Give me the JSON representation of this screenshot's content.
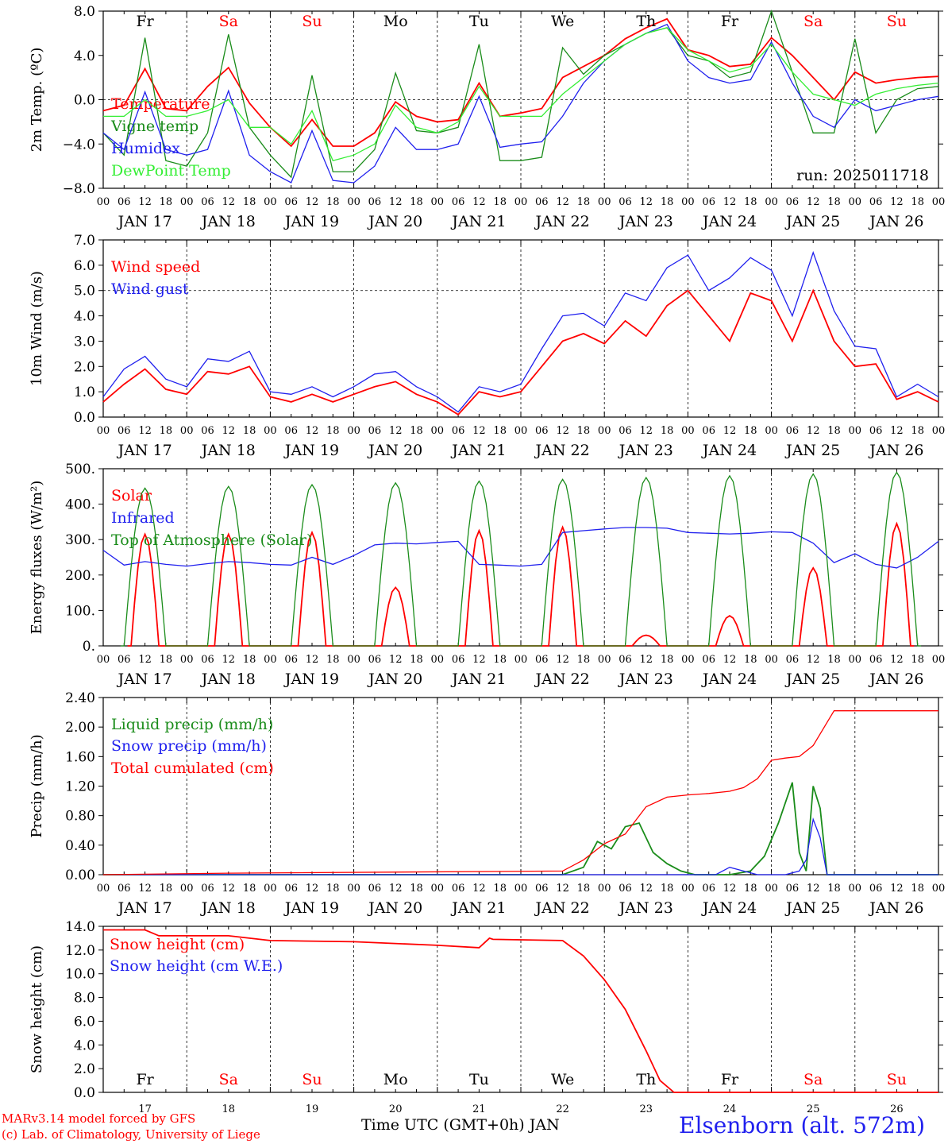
{
  "colors": {
    "red": "#ff0000",
    "green": "#1a8c1a",
    "blue": "#2020ee",
    "lightgreen": "#33ee33",
    "weekend": "#ff0000",
    "weekday": "#000000"
  },
  "time_axis": {
    "hour_ticks": [
      "00",
      "06",
      "12",
      "18"
    ],
    "days": [
      "JAN 17",
      "JAN 18",
      "JAN 19",
      "JAN 20",
      "JAN 21",
      "JAN 22",
      "JAN 23",
      "JAN 24",
      "JAN 25",
      "JAN 26"
    ],
    "day_numbers": [
      "17",
      "18",
      "19",
      "20",
      "21",
      "22",
      "23",
      "24",
      "25",
      "26"
    ],
    "weekdays": [
      {
        "label": "Fr",
        "weekend": false
      },
      {
        "label": "Sa",
        "weekend": true
      },
      {
        "label": "Su",
        "weekend": true
      },
      {
        "label": "Mo",
        "weekend": false
      },
      {
        "label": "Tu",
        "weekend": false
      },
      {
        "label": "We",
        "weekend": false
      },
      {
        "label": "Th",
        "weekend": false
      },
      {
        "label": "Fr",
        "weekend": false
      },
      {
        "label": "Sa",
        "weekend": true
      },
      {
        "label": "Su",
        "weekend": true
      }
    ]
  },
  "footer": {
    "xlabel": "Time UTC (GMT+0h) JAN",
    "credit_line1": "MARv3.14 model forced by GFS",
    "credit_line2": "(c) Lab. of Climatology, University of Liege",
    "station": "Elsenborn (alt. 572m)"
  },
  "chart_data": [
    {
      "type": "line",
      "ylabel": "2m Temp. (ºC)",
      "ylim": [
        -8,
        8
      ],
      "yticks": [
        "8.0",
        "4.0",
        "0.0",
        "−4.0",
        "−8.0"
      ],
      "reference_line": 0,
      "annotation": "run: 2025011718",
      "x_unit": "hours since JAN 17 00 UTC",
      "series": [
        {
          "name": "Temperature",
          "color": "red",
          "x": [
            0,
            6,
            12,
            18,
            24,
            30,
            36,
            42,
            48,
            54,
            60,
            66,
            72,
            78,
            84,
            90,
            96,
            102,
            108,
            114,
            120,
            126,
            132,
            138,
            144,
            150,
            156,
            162,
            168,
            174,
            180,
            186,
            192,
            198,
            204,
            210,
            216,
            222,
            228,
            234,
            240
          ],
          "y": [
            -1,
            -0.5,
            2.8,
            -0.8,
            -1,
            1.2,
            2.9,
            -0.3,
            -2.5,
            -4.2,
            -1.8,
            -4.2,
            -4.2,
            -3,
            -0.2,
            -1.5,
            -2,
            -1.8,
            1.5,
            -1.5,
            -1.2,
            -0.8,
            2,
            3,
            4,
            5.5,
            6.5,
            7.3,
            4.5,
            4,
            3,
            3.2,
            5.6,
            4,
            2,
            0,
            2.5,
            1.5,
            1.8,
            2,
            2.1
          ]
        },
        {
          "name": "Vigne temp",
          "color": "green",
          "x": [
            0,
            6,
            12,
            18,
            24,
            30,
            36,
            42,
            48,
            54,
            60,
            66,
            72,
            78,
            84,
            90,
            96,
            102,
            108,
            114,
            120,
            126,
            132,
            138,
            144,
            150,
            156,
            162,
            168,
            174,
            180,
            186,
            192,
            198,
            204,
            210,
            216,
            222,
            228,
            234,
            240
          ],
          "y": [
            -3,
            -5,
            5.6,
            -5.5,
            -6,
            -3,
            5.9,
            -2.5,
            -5,
            -7,
            2.2,
            -6.5,
            -6.5,
            -4.5,
            2.4,
            -2.8,
            -3,
            -2.5,
            5,
            -5.5,
            -5.5,
            -5.2,
            4.7,
            2.3,
            4,
            5,
            6,
            6.5,
            4,
            3.5,
            2,
            2.5,
            8,
            2.5,
            -3,
            -3,
            5.5,
            -3,
            0,
            1,
            1.2
          ]
        },
        {
          "name": "Humidex",
          "color": "blue",
          "x": [
            0,
            6,
            12,
            18,
            24,
            30,
            36,
            42,
            48,
            54,
            60,
            66,
            72,
            78,
            84,
            90,
            96,
            102,
            108,
            114,
            120,
            126,
            132,
            138,
            144,
            150,
            156,
            162,
            168,
            174,
            180,
            186,
            192,
            198,
            204,
            210,
            216,
            222,
            228,
            234,
            240
          ],
          "y": [
            -3,
            -4.5,
            0.7,
            -4.5,
            -5,
            -4.5,
            0.8,
            -5,
            -6.5,
            -7.5,
            -2.8,
            -7.3,
            -7.5,
            -6,
            -2.5,
            -4.5,
            -4.5,
            -4,
            0.3,
            -4.3,
            -4,
            -3.8,
            -1.5,
            1.5,
            3.5,
            5,
            6,
            6.8,
            3.5,
            2,
            1.5,
            1.8,
            5.2,
            1.5,
            -1.5,
            -2.5,
            0,
            -1,
            -0.5,
            0,
            0.3
          ]
        },
        {
          "name": "DewPoint Temp",
          "color": "lightgreen",
          "x": [
            0,
            6,
            12,
            18,
            24,
            30,
            36,
            42,
            48,
            54,
            60,
            66,
            72,
            78,
            84,
            90,
            96,
            102,
            108,
            114,
            120,
            126,
            132,
            138,
            144,
            150,
            156,
            162,
            168,
            174,
            180,
            186,
            192,
            198,
            204,
            210,
            216,
            222,
            228,
            234,
            240
          ],
          "y": [
            -1.5,
            -1.5,
            0,
            -1.5,
            -1.5,
            -1,
            0,
            -2.5,
            -2.5,
            -4,
            -1,
            -5.5,
            -5,
            -4,
            -0.5,
            -2.5,
            -3,
            -2,
            1.2,
            -1.5,
            -1.5,
            -1.5,
            0.5,
            2,
            3.5,
            5,
            6,
            6.5,
            4.5,
            3.5,
            2.5,
            3,
            5,
            2.5,
            0.5,
            0,
            -0.5,
            0.5,
            1,
            1.3,
            1.5
          ]
        }
      ]
    },
    {
      "type": "line",
      "ylabel": "10m Wind (m/s)",
      "ylim": [
        0,
        7
      ],
      "yticks": [
        "7.0",
        "6.0",
        "5.0",
        "4.0",
        "3.0",
        "2.0",
        "1.0",
        "0.0"
      ],
      "reference_line": 5,
      "x_unit": "hours since JAN 17 00 UTC",
      "series": [
        {
          "name": "Wind speed",
          "color": "red",
          "x": [
            0,
            6,
            12,
            18,
            24,
            30,
            36,
            42,
            48,
            54,
            60,
            66,
            72,
            78,
            84,
            90,
            96,
            102,
            108,
            114,
            120,
            126,
            132,
            138,
            144,
            150,
            156,
            162,
            168,
            174,
            180,
            186,
            192,
            198,
            204,
            210,
            216,
            222,
            228,
            234,
            240
          ],
          "y": [
            0.6,
            1.3,
            1.9,
            1.1,
            0.9,
            1.8,
            1.7,
            2,
            0.8,
            0.6,
            0.9,
            0.6,
            0.9,
            1.2,
            1.4,
            0.9,
            0.6,
            0.1,
            1,
            0.8,
            1,
            2,
            3,
            3.3,
            2.9,
            3.8,
            3.2,
            4.4,
            5,
            4,
            3,
            4.9,
            4.6,
            3,
            5,
            3,
            2,
            2.1,
            0.7,
            1,
            0.6
          ]
        },
        {
          "name": "Wind gust",
          "color": "blue",
          "x": [
            0,
            6,
            12,
            18,
            24,
            30,
            36,
            42,
            48,
            54,
            60,
            66,
            72,
            78,
            84,
            90,
            96,
            102,
            108,
            114,
            120,
            126,
            132,
            138,
            144,
            150,
            156,
            162,
            168,
            174,
            180,
            186,
            192,
            198,
            204,
            210,
            216,
            222,
            228,
            234,
            240
          ],
          "y": [
            0.8,
            1.9,
            2.4,
            1.5,
            1.2,
            2.3,
            2.2,
            2.6,
            1,
            0.9,
            1.2,
            0.8,
            1.2,
            1.7,
            1.8,
            1.2,
            0.8,
            0.2,
            1.2,
            1,
            1.3,
            2.7,
            4,
            4.1,
            3.6,
            4.9,
            4.6,
            5.9,
            6.4,
            5,
            5.5,
            6.3,
            5.8,
            4,
            6.5,
            4.2,
            2.8,
            2.7,
            0.8,
            1.3,
            0.8
          ]
        }
      ]
    },
    {
      "type": "line",
      "ylabel": "Energy fluxes (W/m²)",
      "ylim": [
        0,
        500
      ],
      "yticks": [
        "500.",
        "400.",
        "300.",
        "200.",
        "100.",
        "0."
      ],
      "x_unit": "hours since JAN 17 00 UTC",
      "series": [
        {
          "name": "Solar",
          "color": "red",
          "daily_peak_hour": 12,
          "daily_peaks": [
            315,
            315,
            320,
            165,
            325,
            335,
            30,
            85,
            220,
            345
          ]
        },
        {
          "name": "Infrared",
          "color": "blue",
          "x": [
            0,
            6,
            12,
            18,
            24,
            30,
            36,
            42,
            48,
            54,
            60,
            66,
            72,
            78,
            84,
            90,
            96,
            102,
            108,
            114,
            120,
            126,
            132,
            138,
            144,
            150,
            156,
            162,
            168,
            174,
            180,
            186,
            192,
            198,
            204,
            210,
            216,
            222,
            228,
            234,
            240
          ],
          "y": [
            270,
            228,
            238,
            230,
            225,
            232,
            238,
            235,
            230,
            228,
            250,
            230,
            255,
            285,
            290,
            288,
            292,
            295,
            230,
            228,
            225,
            230,
            320,
            325,
            330,
            334,
            334,
            332,
            320,
            318,
            316,
            318,
            322,
            320,
            290,
            235,
            260,
            230,
            220,
            250,
            295
          ]
        },
        {
          "name": "Top of Atmosphere (Solar)",
          "color": "green",
          "daily_peak_hour": 12,
          "daily_peaks": [
            445,
            450,
            455,
            460,
            465,
            470,
            475,
            480,
            485,
            490
          ]
        }
      ]
    },
    {
      "type": "line",
      "ylabel": "Precip (mm/h)",
      "ylim": [
        0,
        2.4
      ],
      "yticks": [
        "2.40",
        "2.00",
        "1.60",
        "1.20",
        "0.80",
        "0.40",
        "0.00"
      ],
      "x_unit": "hours since JAN 17 00 UTC",
      "series": [
        {
          "name": "Liquid precip (mm/h)",
          "color": "green",
          "x": [
            0,
            132,
            138,
            142,
            146,
            150,
            154,
            158,
            162,
            166,
            170,
            180,
            186,
            190,
            194,
            198,
            200,
            202,
            204,
            206,
            208,
            240
          ],
          "y": [
            0,
            0,
            0.1,
            0.45,
            0.35,
            0.65,
            0.7,
            0.3,
            0.15,
            0.05,
            0,
            0,
            0.05,
            0.25,
            0.7,
            1.25,
            0.3,
            0.05,
            1.2,
            0.9,
            0,
            0
          ]
        },
        {
          "name": "Snow precip (mm/h)",
          "color": "blue",
          "x": [
            0,
            176,
            180,
            184,
            188,
            196,
            200,
            202,
            204,
            206,
            208,
            240
          ],
          "y": [
            0,
            0,
            0.1,
            0.05,
            0,
            0,
            0.05,
            0.2,
            0.75,
            0.5,
            0,
            0
          ]
        },
        {
          "name": "Total cumulated (cm)",
          "color": "red",
          "x": [
            0,
            36,
            132,
            138,
            144,
            150,
            156,
            162,
            168,
            174,
            180,
            184,
            188,
            192,
            196,
            200,
            204,
            210,
            220,
            240
          ],
          "y": [
            0,
            0.02,
            0.05,
            0.2,
            0.42,
            0.55,
            0.92,
            1.05,
            1.08,
            1.1,
            1.13,
            1.18,
            1.3,
            1.55,
            1.58,
            1.6,
            1.75,
            2.22,
            2.22,
            2.22
          ]
        }
      ]
    },
    {
      "type": "line",
      "ylabel": "Snow height (cm)",
      "ylim": [
        0,
        14
      ],
      "yticks": [
        "14.0",
        "12.0",
        "10.0",
        "8.0",
        "6.0",
        "4.0",
        "2.0",
        "0.0"
      ],
      "x_unit": "hours since JAN 17 00 UTC",
      "series": [
        {
          "name": "Snow height (cm)",
          "color": "red",
          "x": [
            0,
            12,
            16,
            36,
            48,
            72,
            96,
            108,
            111,
            112,
            132,
            138,
            144,
            150,
            156,
            160,
            164,
            240
          ],
          "y": [
            13.7,
            13.7,
            13.2,
            13.2,
            12.8,
            12.7,
            12.4,
            12.2,
            13,
            12.9,
            12.8,
            11.5,
            9.5,
            7,
            3.5,
            1,
            0,
            0
          ]
        },
        {
          "name": "Snow height (cm W.E.)",
          "color": "blue",
          "x": [],
          "y": []
        }
      ]
    }
  ]
}
